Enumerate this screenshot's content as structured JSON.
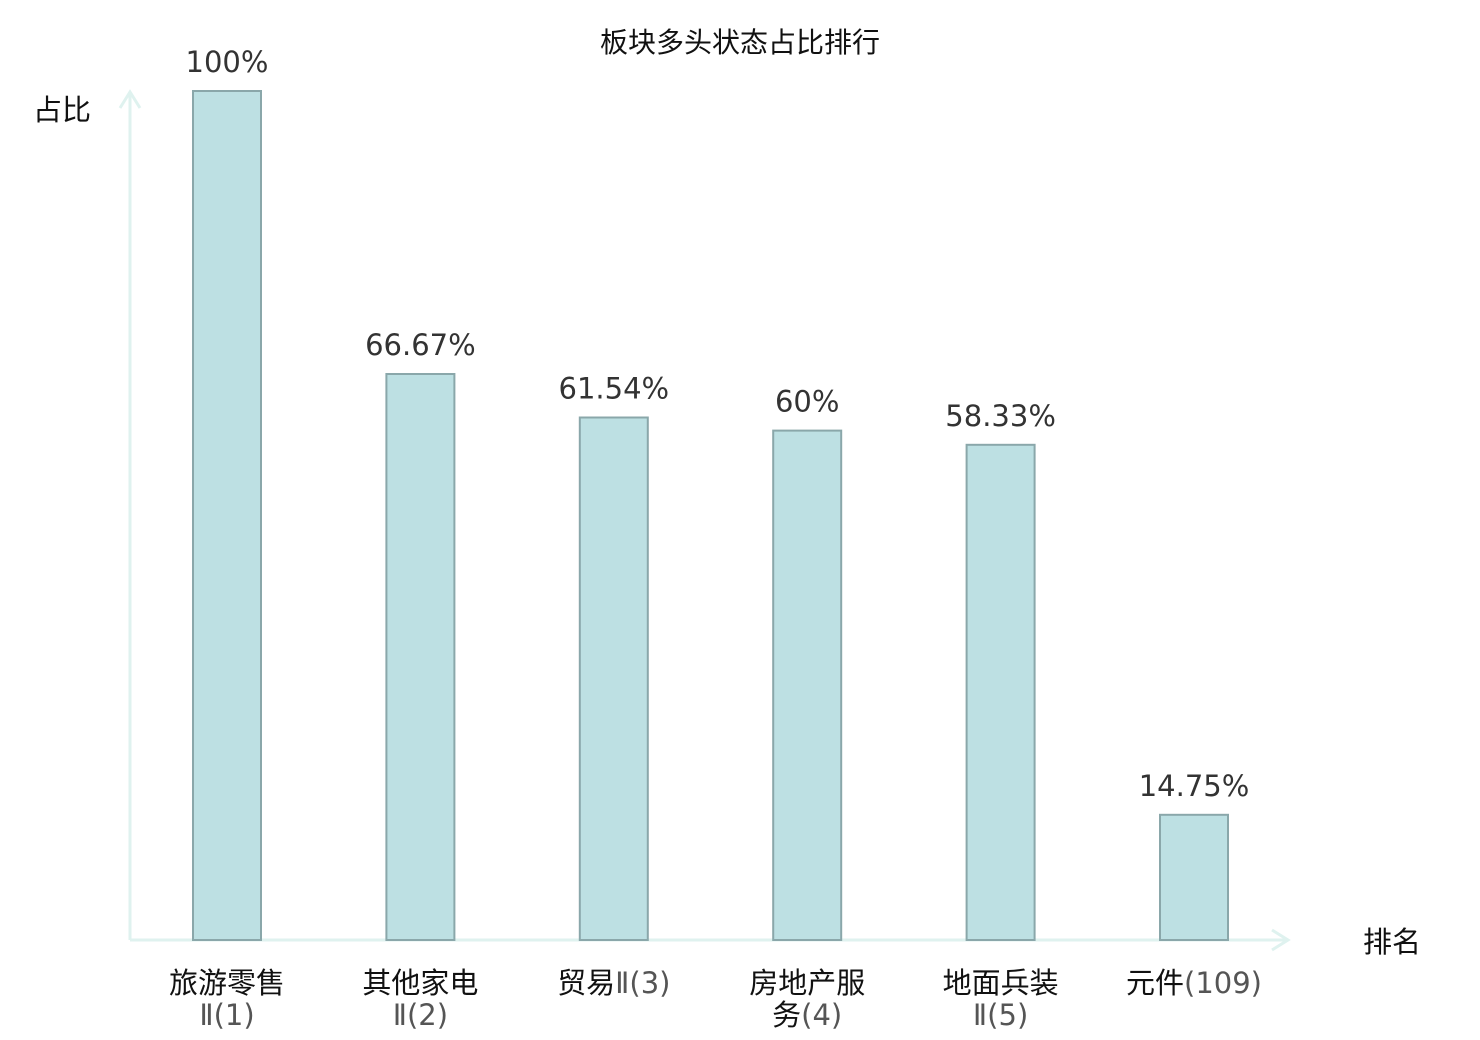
{
  "chart_data": {
    "type": "bar",
    "title": "板块多头状态占比排行",
    "xlabel": "排名",
    "ylabel": "占比",
    "ylim": [
      0,
      100
    ],
    "grid": false,
    "categories": [
      "旅游零售Ⅱ(1)",
      "其他家电Ⅱ(2)",
      "贸易Ⅱ(3)",
      "房地产服务(4)",
      "地面兵装Ⅱ(5)",
      "元件(109)"
    ],
    "tick_lines": [
      [
        {
          "main": "旅游零售",
          "rank": ""
        },
        {
          "main": "",
          "rank": "Ⅱ(1)"
        }
      ],
      [
        {
          "main": "其他家电",
          "rank": ""
        },
        {
          "main": "",
          "rank": "Ⅱ(2)"
        }
      ],
      [
        {
          "main": "贸易",
          "rank": "Ⅱ(3)"
        }
      ],
      [
        {
          "main": "房地产服",
          "rank": ""
        },
        {
          "main": "务",
          "rank": "(4)"
        }
      ],
      [
        {
          "main": "地面兵装",
          "rank": ""
        },
        {
          "main": "",
          "rank": "Ⅱ(5)"
        }
      ],
      [
        {
          "main": "元件",
          "rank": "(109)"
        }
      ]
    ],
    "values": [
      100,
      66.67,
      61.54,
      60,
      58.33,
      14.75
    ],
    "value_labels": [
      "100%",
      "66.67%",
      "61.54%",
      "60%",
      "58.33%",
      "14.75%"
    ],
    "highlight_index": 5
  },
  "colors": {
    "bar_fill": "#bde0e3",
    "bar_stroke": "#8aa7aa",
    "axis": "#dff2ef",
    "highlight_text": "#e00000"
  }
}
